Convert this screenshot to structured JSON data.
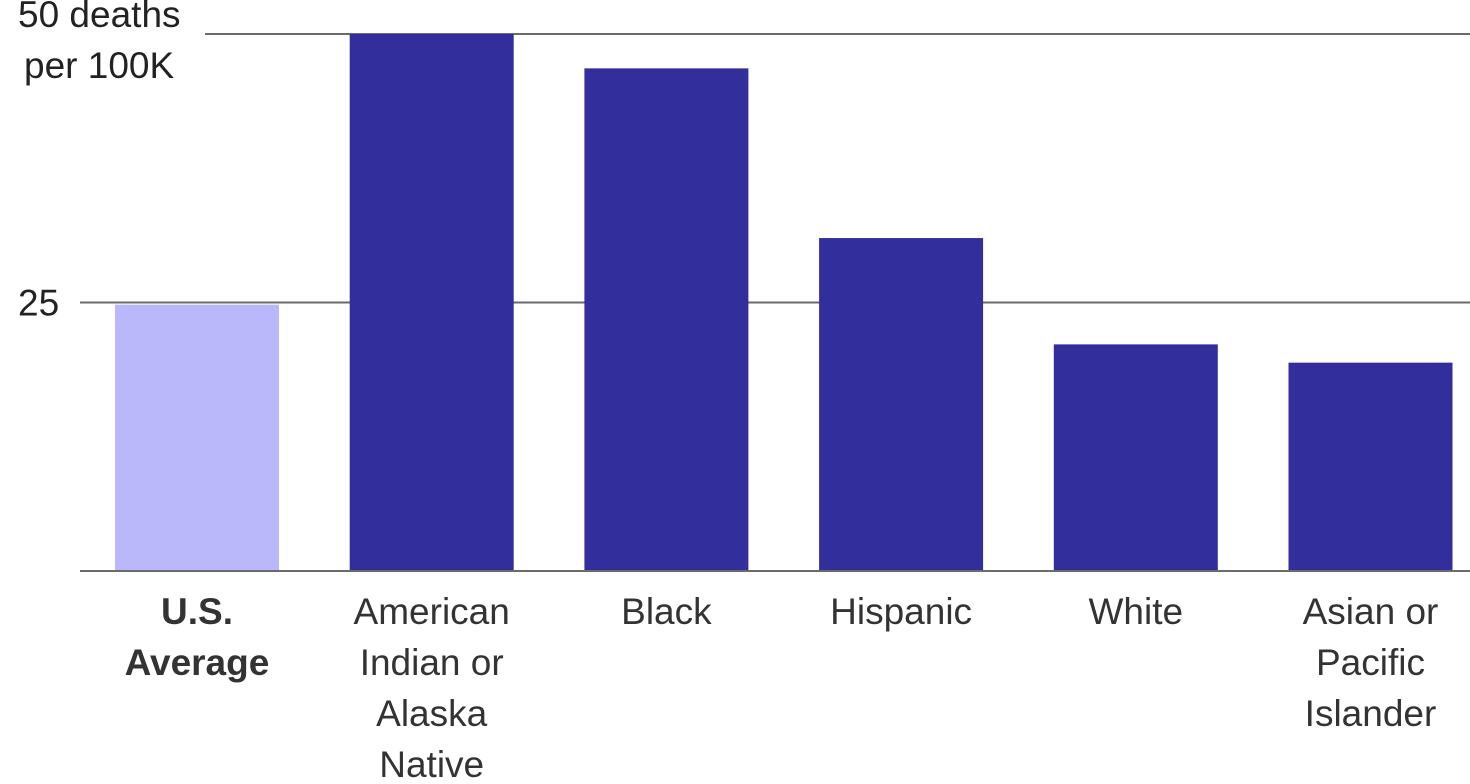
{
  "chart_data": {
    "type": "bar",
    "title": "",
    "xlabel": "",
    "ylabel": "",
    "ylim": [
      0,
      50
    ],
    "grid": true,
    "y_ticks": [
      {
        "value": 50,
        "lines": [
          "50 deaths",
          "per 100K"
        ]
      },
      {
        "value": 25,
        "lines": [
          "25"
        ]
      }
    ],
    "categories": [
      {
        "lines": [
          "U.S.",
          "Average"
        ],
        "bold": true
      },
      {
        "lines": [
          "American",
          "Indian or",
          "Alaska",
          "Native"
        ],
        "bold": false
      },
      {
        "lines": [
          "Black"
        ],
        "bold": false
      },
      {
        "lines": [
          "Hispanic"
        ],
        "bold": false
      },
      {
        "lines": [
          "White"
        ],
        "bold": false
      },
      {
        "lines": [
          "Asian or",
          "Pacific",
          "Islander"
        ],
        "bold": false
      }
    ],
    "values": [
      24.8,
      50.0,
      46.8,
      31.0,
      21.1,
      19.4
    ],
    "colors": {
      "highlight": "#bab8fb",
      "bar": "#322e9c"
    },
    "bar_colors": [
      "#bab8fb",
      "#322e9c",
      "#322e9c",
      "#322e9c",
      "#322e9c",
      "#322e9c"
    ]
  }
}
